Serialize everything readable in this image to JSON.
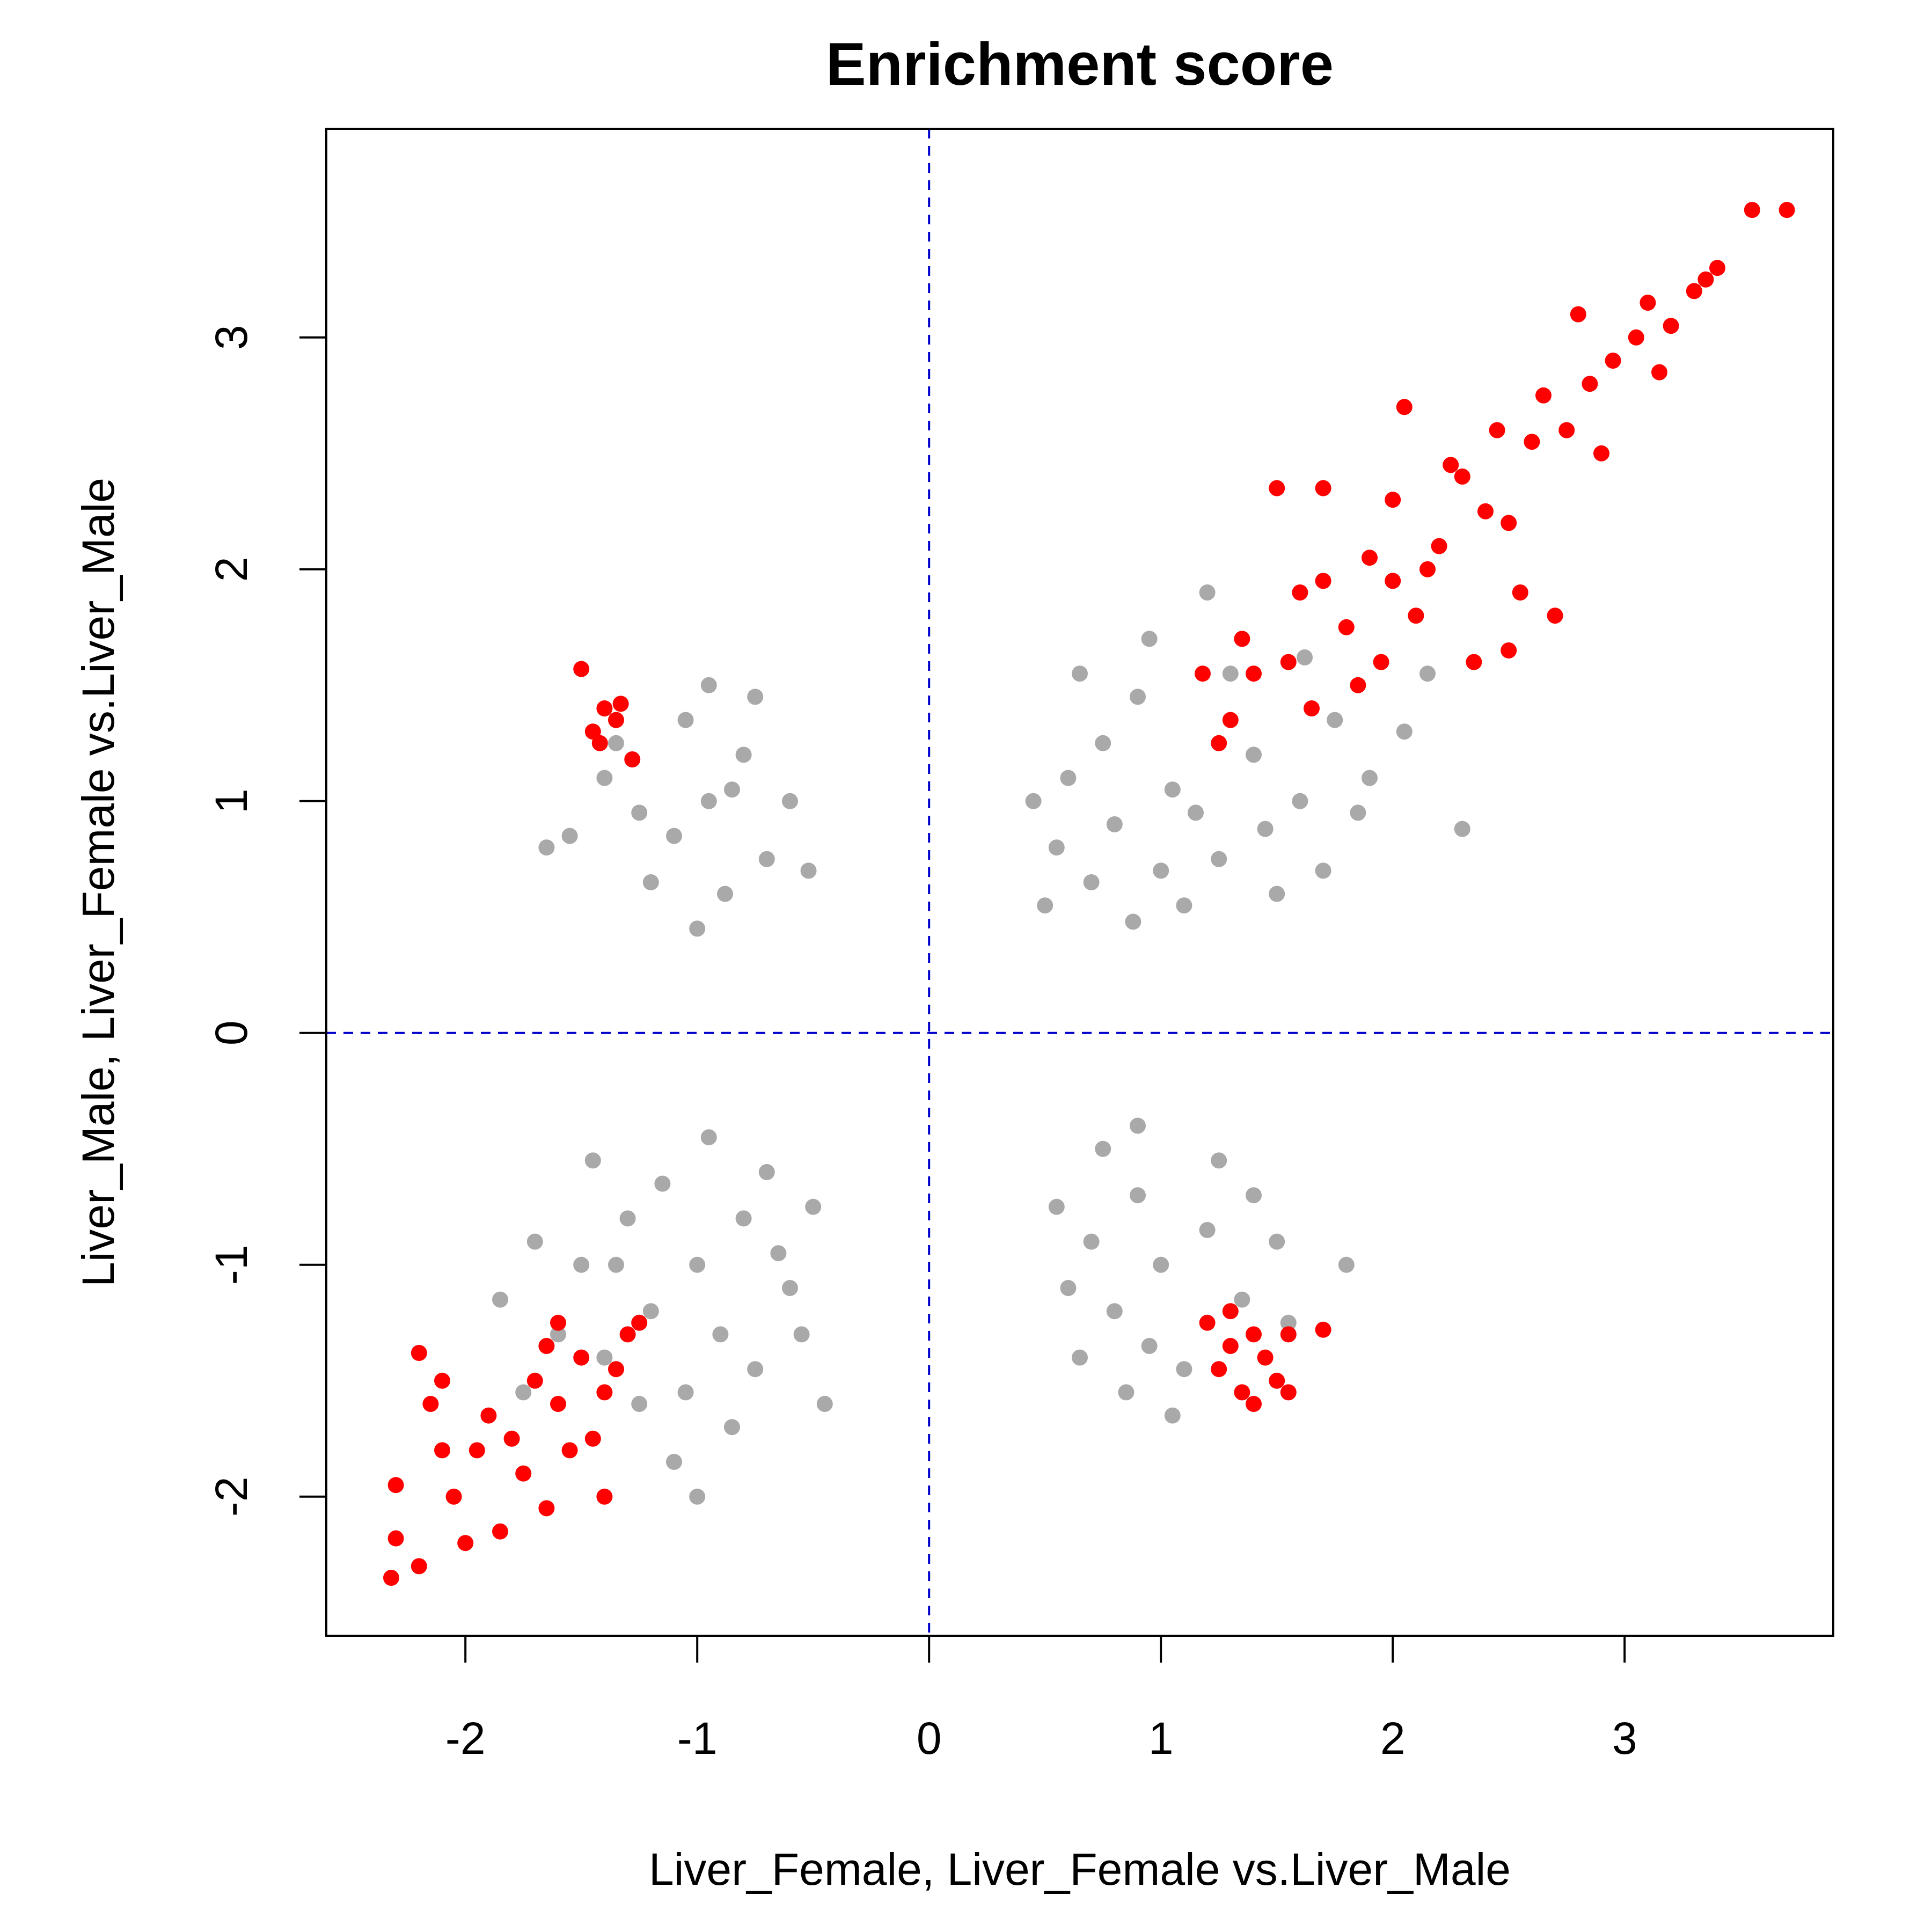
{
  "chart_data": {
    "type": "scatter",
    "title": "Enrichment score",
    "xlabel": "Liver_Female, Liver_Female vs.Liver_Male",
    "ylabel": "Liver_Male, Liver_Female vs.Liver_Male",
    "xlim": [
      -2.6,
      3.9
    ],
    "ylim": [
      -2.6,
      3.9
    ],
    "xticks": [
      "-2",
      "-1",
      "0",
      "1",
      "2",
      "3"
    ],
    "xtick_values": [
      -2,
      -1,
      0,
      1,
      2,
      3
    ],
    "yticks": [
      "-2",
      "-1",
      "0",
      "1",
      "2",
      "3"
    ],
    "ytick_values": [
      -2,
      -1,
      0,
      1,
      2,
      3
    ],
    "reference_lines": {
      "x": 0,
      "y": 0,
      "color": "#0000cc",
      "style": "dashed"
    },
    "grid": false,
    "legend": "none",
    "series": [
      {
        "color": "#8c8c8c",
        "opacity": 0.75,
        "points": [
          [
            1.05,
            1.05
          ],
          [
            0.8,
            0.9
          ],
          [
            1.25,
            0.75
          ],
          [
            1.4,
            1.2
          ],
          [
            0.9,
            1.45
          ],
          [
            1.6,
            1.0
          ],
          [
            0.7,
            0.65
          ],
          [
            1.1,
            0.55
          ],
          [
            1.5,
            0.6
          ],
          [
            0.95,
            1.7
          ],
          [
            1.75,
            1.35
          ],
          [
            0.6,
            1.1
          ],
          [
            1.3,
            1.55
          ],
          [
            0.55,
            0.8
          ],
          [
            1.85,
            0.95
          ],
          [
            0.88,
            0.48
          ],
          [
            1.2,
            1.9
          ],
          [
            0.45,
            1.0
          ],
          [
            2.05,
            1.3
          ],
          [
            1.62,
            1.62
          ],
          [
            1.15,
            0.95
          ],
          [
            0.75,
            1.25
          ],
          [
            1.45,
            0.88
          ],
          [
            1.0,
            0.7
          ],
          [
            2.3,
            0.88
          ],
          [
            2.15,
            1.55
          ],
          [
            1.7,
            0.7
          ],
          [
            0.5,
            0.55
          ],
          [
            1.9,
            1.1
          ],
          [
            0.65,
            1.55
          ],
          [
            -0.95,
            1.0
          ],
          [
            -1.1,
            0.85
          ],
          [
            -0.8,
            1.2
          ],
          [
            -1.25,
            0.95
          ],
          [
            -0.7,
            0.75
          ],
          [
            -1.05,
            1.35
          ],
          [
            -0.88,
            0.6
          ],
          [
            -1.4,
            1.1
          ],
          [
            -0.6,
            1.0
          ],
          [
            -1.2,
            0.65
          ],
          [
            -0.95,
            1.5
          ],
          [
            -1.55,
            0.85
          ],
          [
            -0.75,
            1.45
          ],
          [
            -1.0,
            0.45
          ],
          [
            -0.52,
            0.7
          ],
          [
            -1.35,
            1.25
          ],
          [
            -0.85,
            1.05
          ],
          [
            -1.65,
            0.8
          ],
          [
            -1.0,
            -1.0
          ],
          [
            -1.2,
            -1.2
          ],
          [
            -0.8,
            -0.8
          ],
          [
            -1.4,
            -1.4
          ],
          [
            -0.9,
            -1.3
          ],
          [
            -1.3,
            -0.8
          ],
          [
            -0.6,
            -1.1
          ],
          [
            -1.15,
            -0.65
          ],
          [
            -1.5,
            -1.0
          ],
          [
            -0.7,
            -0.6
          ],
          [
            -1.05,
            -1.55
          ],
          [
            -1.6,
            -1.3
          ],
          [
            -0.5,
            -0.75
          ],
          [
            -0.85,
            -1.7
          ],
          [
            -1.25,
            -1.6
          ],
          [
            -1.7,
            -0.9
          ],
          [
            -0.75,
            -1.45
          ],
          [
            -1.45,
            -0.55
          ],
          [
            -1.1,
            -1.85
          ],
          [
            -1.85,
            -1.15
          ],
          [
            -0.55,
            -1.3
          ],
          [
            -0.95,
            -0.45
          ],
          [
            -1.35,
            -1.0
          ],
          [
            -1.75,
            -1.55
          ],
          [
            -0.65,
            -0.95
          ],
          [
            -1.0,
            -2.0
          ],
          [
            -0.45,
            -1.6
          ],
          [
            1.0,
            -1.0
          ],
          [
            0.8,
            -1.2
          ],
          [
            1.2,
            -0.85
          ],
          [
            0.9,
            -0.7
          ],
          [
            1.35,
            -1.15
          ],
          [
            0.7,
            -0.9
          ],
          [
            1.1,
            -1.45
          ],
          [
            0.85,
            -1.55
          ],
          [
            1.5,
            -0.9
          ],
          [
            0.6,
            -1.1
          ],
          [
            1.25,
            -0.55
          ],
          [
            0.95,
            -1.35
          ],
          [
            1.55,
            -1.25
          ],
          [
            0.55,
            -0.75
          ],
          [
            1.8,
            -1.0
          ],
          [
            0.75,
            -0.5
          ],
          [
            1.05,
            -1.65
          ],
          [
            0.65,
            -1.4
          ],
          [
            1.4,
            -0.7
          ],
          [
            0.9,
            -0.4
          ]
        ]
      },
      {
        "color": "#ff0000",
        "opacity": 1,
        "points": [
          [
            1.3,
            1.35
          ],
          [
            1.55,
            1.6
          ],
          [
            1.8,
            1.75
          ],
          [
            2.0,
            1.95
          ],
          [
            2.2,
            2.1
          ],
          [
            2.4,
            2.25
          ],
          [
            1.65,
            1.4
          ],
          [
            1.4,
            1.55
          ],
          [
            1.9,
            2.05
          ],
          [
            2.1,
            1.8
          ],
          [
            1.25,
            1.25
          ],
          [
            1.7,
            1.95
          ],
          [
            2.3,
            2.4
          ],
          [
            2.5,
            2.2
          ],
          [
            2.6,
            2.55
          ],
          [
            2.75,
            2.6
          ],
          [
            2.85,
            2.8
          ],
          [
            2.95,
            2.9
          ],
          [
            3.05,
            3.0
          ],
          [
            3.2,
            3.05
          ],
          [
            3.3,
            3.2
          ],
          [
            3.4,
            3.3
          ],
          [
            3.55,
            3.55
          ],
          [
            3.7,
            3.55
          ],
          [
            1.5,
            2.35
          ],
          [
            1.7,
            2.35
          ],
          [
            2.05,
            2.7
          ],
          [
            2.55,
            1.9
          ],
          [
            2.7,
            1.8
          ],
          [
            2.5,
            1.65
          ],
          [
            1.18,
            1.55
          ],
          [
            1.85,
            1.5
          ],
          [
            2.35,
            1.6
          ],
          [
            2.65,
            2.75
          ],
          [
            2.9,
            2.5
          ],
          [
            3.1,
            3.15
          ],
          [
            3.15,
            2.85
          ],
          [
            2.8,
            3.1
          ],
          [
            2.45,
            2.6
          ],
          [
            1.35,
            1.7
          ],
          [
            2.0,
            2.3
          ],
          [
            1.6,
            1.9
          ],
          [
            2.25,
            2.45
          ],
          [
            1.95,
            1.6
          ],
          [
            2.15,
            2.0
          ],
          [
            3.35,
            3.25
          ],
          [
            -1.5,
            1.57
          ],
          [
            -1.4,
            1.4
          ],
          [
            -1.45,
            1.3
          ],
          [
            -1.35,
            1.35
          ],
          [
            -1.28,
            1.18
          ],
          [
            -1.42,
            1.25
          ],
          [
            -1.33,
            1.42
          ],
          [
            -1.6,
            -1.6
          ],
          [
            -1.7,
            -1.5
          ],
          [
            -1.5,
            -1.4
          ],
          [
            -1.4,
            -1.55
          ],
          [
            -1.8,
            -1.75
          ],
          [
            -1.55,
            -1.8
          ],
          [
            -1.3,
            -1.3
          ],
          [
            -1.65,
            -1.35
          ],
          [
            -1.9,
            -1.65
          ],
          [
            -2.1,
            -1.8
          ],
          [
            -2.3,
            -1.95
          ],
          [
            -2.32,
            -2.35
          ],
          [
            -2.2,
            -2.3
          ],
          [
            -2.3,
            -2.18
          ],
          [
            -2.15,
            -1.6
          ],
          [
            -2.2,
            -1.38
          ],
          [
            -2.05,
            -2.0
          ],
          [
            -2.0,
            -2.2
          ],
          [
            -1.85,
            -2.15
          ],
          [
            -1.65,
            -2.05
          ],
          [
            -1.4,
            -2.0
          ],
          [
            -1.25,
            -1.25
          ],
          [
            -1.45,
            -1.75
          ],
          [
            -1.75,
            -1.9
          ],
          [
            -2.1,
            -1.5
          ],
          [
            -1.95,
            -1.8
          ],
          [
            -1.35,
            -1.45
          ],
          [
            -1.6,
            -1.25
          ],
          [
            1.2,
            -1.25
          ],
          [
            1.3,
            -1.35
          ],
          [
            1.4,
            -1.3
          ],
          [
            1.25,
            -1.45
          ],
          [
            1.35,
            -1.55
          ],
          [
            1.5,
            -1.5
          ],
          [
            1.45,
            -1.4
          ],
          [
            1.55,
            -1.3
          ],
          [
            1.7,
            -1.28
          ],
          [
            1.4,
            -1.6
          ],
          [
            1.55,
            -1.55
          ],
          [
            1.3,
            -1.2
          ]
        ]
      }
    ]
  }
}
